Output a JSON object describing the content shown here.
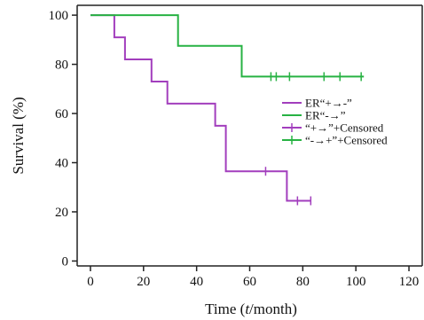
{
  "chart_data": {
    "type": "line",
    "subtype": "kaplan-meier-step",
    "title": "",
    "xlabel_parts": [
      "Time (",
      "t",
      "/month)"
    ],
    "ylabel": "Survival (%)",
    "xlim": [
      -5,
      125
    ],
    "ylim": [
      -2,
      104
    ],
    "xticks": [
      0,
      20,
      40,
      60,
      80,
      100,
      120
    ],
    "yticks": [
      0,
      20,
      40,
      60,
      80,
      100
    ],
    "grid": false,
    "legend_position": "right-center",
    "legend": [
      {
        "label": "ER“+→-”",
        "color": "#a23ebd",
        "marker": "line"
      },
      {
        "label": "ER“-→”",
        "color": "#27b243",
        "marker": "line"
      },
      {
        "label": "“+→”+Censored",
        "color": "#a23ebd",
        "marker": "line-tick"
      },
      {
        "label": "“-→+”+Censored",
        "color": "#27b243",
        "marker": "line-tick"
      }
    ],
    "series": [
      {
        "color": "#a23ebd",
        "steps": [
          [
            0,
            100
          ],
          [
            9,
            100
          ],
          [
            9,
            91
          ],
          [
            13,
            91
          ],
          [
            13,
            82
          ],
          [
            23,
            82
          ],
          [
            23,
            73
          ],
          [
            29,
            73
          ],
          [
            29,
            64
          ],
          [
            47,
            64
          ],
          [
            47,
            55
          ],
          [
            51,
            55
          ],
          [
            51,
            36.5
          ],
          [
            74,
            36.5
          ],
          [
            74,
            24.5
          ],
          [
            83,
            24.5
          ]
        ],
        "censored": [
          [
            66,
            36.5
          ],
          [
            78,
            24.5
          ],
          [
            83,
            24.5
          ]
        ]
      },
      {
        "color": "#27b243",
        "steps": [
          [
            0,
            100
          ],
          [
            33,
            100
          ],
          [
            33,
            87.5
          ],
          [
            57,
            87.5
          ],
          [
            57,
            75
          ],
          [
            103,
            75
          ]
        ],
        "censored": [
          [
            68,
            75
          ],
          [
            70,
            75
          ],
          [
            75,
            75
          ],
          [
            88,
            75
          ],
          [
            94,
            75
          ],
          [
            102,
            75
          ]
        ]
      }
    ]
  }
}
